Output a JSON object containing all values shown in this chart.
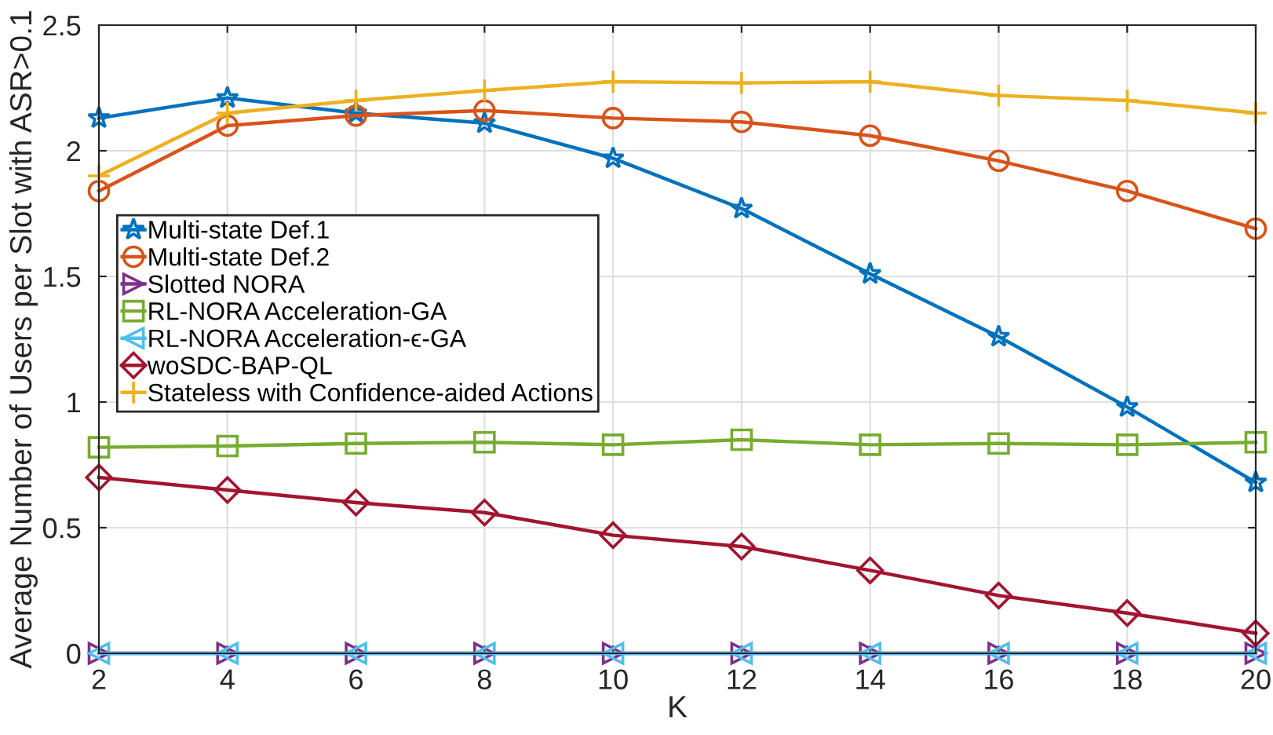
{
  "chart_data": {
    "type": "line",
    "xlabel": "K",
    "ylabel": "Average Number of Users per Slot with ASR>0.1",
    "x": [
      2,
      4,
      6,
      8,
      10,
      12,
      14,
      16,
      18,
      20
    ],
    "xlim": [
      2,
      20
    ],
    "xticks": [
      2,
      4,
      6,
      8,
      10,
      12,
      14,
      16,
      18,
      20
    ],
    "ylim": [
      0,
      2.5
    ],
    "yticks": [
      0,
      0.5,
      1,
      1.5,
      2,
      2.5
    ],
    "grid": true,
    "legend": "left",
    "line_style": "solid",
    "series": [
      {
        "name": "Multi-state Def.1",
        "color": "#0072bd",
        "marker": "star",
        "values": [
          2.13,
          2.21,
          2.15,
          2.11,
          1.97,
          1.77,
          1.51,
          1.26,
          0.98,
          0.68
        ]
      },
      {
        "name": "Multi-state Def.2",
        "color": "#d95319",
        "marker": "circle",
        "values": [
          1.84,
          2.1,
          2.14,
          2.16,
          2.13,
          2.115,
          2.06,
          1.96,
          1.84,
          1.69
        ]
      },
      {
        "name": "Slotted NORA",
        "color": "#7e2f8e",
        "marker": "triangle-right",
        "values": [
          0,
          0,
          0,
          0,
          0,
          0,
          0,
          0,
          0,
          0
        ]
      },
      {
        "name": "RL-NORA Acceleration-GA",
        "color": "#77ac30",
        "marker": "square",
        "values": [
          0.82,
          0.825,
          0.835,
          0.84,
          0.83,
          0.85,
          0.83,
          0.835,
          0.83,
          0.84
        ]
      },
      {
        "name": "RL-NORA Acceleration-ϵ-GA",
        "color": "#4dbeee",
        "marker": "triangle-left",
        "values": [
          0,
          0,
          0,
          0,
          0,
          0,
          0,
          0,
          0,
          0
        ]
      },
      {
        "name": "woSDC-BAP-QL",
        "color": "#a2142f",
        "marker": "diamond",
        "values": [
          0.7,
          0.65,
          0.6,
          0.56,
          0.47,
          0.425,
          0.33,
          0.23,
          0.16,
          0.08
        ]
      },
      {
        "name": "Stateless with Confidence-aided Actions",
        "color": "#edb120",
        "marker": "cross",
        "values": [
          1.9,
          2.15,
          2.2,
          2.24,
          2.275,
          2.27,
          2.275,
          2.22,
          2.2,
          2.15
        ]
      }
    ]
  }
}
